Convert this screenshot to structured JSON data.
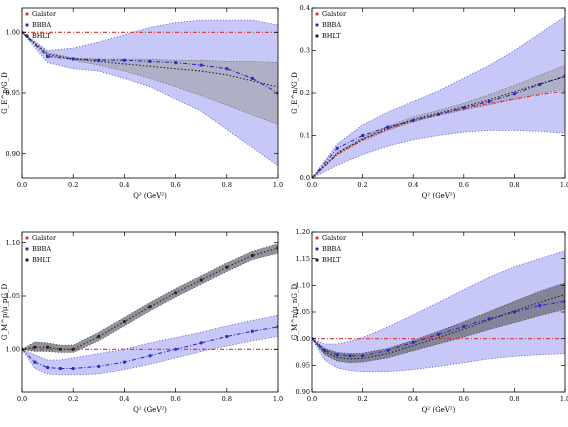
{
  "colors": {
    "band": "#c8c8f8",
    "band_edge": "#5a5ad0",
    "inner_band": "#9a9a9a",
    "dark_band": "#6e6e7a",
    "galster": "#e03030",
    "bbba": "#2a2ad0",
    "bhlt": "#222222"
  },
  "chart_data": [
    {
      "type": "line",
      "xlabel": "Q² (GeV²)",
      "ylabel": "G_E^p/G_D",
      "xlim": [
        0,
        1
      ],
      "ylim": [
        0.88,
        1.02
      ],
      "xticks": [
        0,
        0.2,
        0.4,
        0.6,
        0.8,
        1
      ],
      "xtick_labels": [
        "0.0",
        "0.2",
        "0.4",
        "0.6",
        "0.8",
        "1.0"
      ],
      "yticks": [
        0.9,
        0.95,
        1.0
      ],
      "ytick_labels": [
        "0.90",
        "0.95",
        "1.00"
      ],
      "legend": [
        "Galster",
        "BBBA",
        "BHLT"
      ],
      "legend_position": "top-left",
      "x": [
        0,
        0.1,
        0.2,
        0.3,
        0.4,
        0.5,
        0.6,
        0.7,
        0.8,
        0.9,
        1.0
      ],
      "series": [
        {
          "name": "Galster",
          "style": "dash-dot",
          "values": [
            1.0,
            1.0,
            1.0,
            1.0,
            1.0,
            1.0,
            1.0,
            1.0,
            1.0,
            1.0,
            1.0
          ]
        },
        {
          "name": "BBBA",
          "style": "dash-dot-marker",
          "values": [
            1.0,
            0.98,
            0.978,
            0.977,
            0.977,
            0.976,
            0.975,
            0.973,
            0.97,
            0.962,
            0.95
          ]
        },
        {
          "name": "BHLT",
          "style": "dotted",
          "values": [
            1.0,
            0.982,
            0.978,
            0.976,
            0.974,
            0.972,
            0.97,
            0.968,
            0.965,
            0.96,
            0.955
          ]
        }
      ],
      "bands": [
        {
          "role": "outer",
          "lower": [
            1.0,
            0.975,
            0.97,
            0.968,
            0.962,
            0.955,
            0.945,
            0.935,
            0.92,
            0.905,
            0.89
          ],
          "upper": [
            1.0,
            0.985,
            0.987,
            0.992,
            0.998,
            1.004,
            1.008,
            1.01,
            1.01,
            1.01,
            1.006
          ]
        },
        {
          "role": "inner",
          "lower": [
            1.0,
            0.981,
            0.977,
            0.973,
            0.968,
            0.962,
            0.955,
            0.948,
            0.94,
            0.932,
            0.924
          ],
          "upper": [
            1.0,
            0.983,
            0.979,
            0.978,
            0.978,
            0.978,
            0.977,
            0.977,
            0.976,
            0.976,
            0.975
          ]
        }
      ]
    },
    {
      "type": "line",
      "xlabel": "Q² (GeV²)",
      "ylabel": "G_E^n/G_D",
      "xlim": [
        0,
        1
      ],
      "ylim": [
        0,
        0.4
      ],
      "xticks": [
        0,
        0.2,
        0.4,
        0.6,
        0.8,
        1
      ],
      "xtick_labels": [
        "0.0",
        "0.2",
        "0.4",
        "0.6",
        "0.8",
        "1.0"
      ],
      "yticks": [
        0,
        0.1,
        0.2,
        0.3,
        0.4
      ],
      "ytick_labels": [
        "0.0",
        "0.1",
        "0.2",
        "0.3",
        "0.4"
      ],
      "legend": [
        "Galster",
        "BBBA",
        "BHLT"
      ],
      "legend_position": "top-left",
      "x": [
        0,
        0.1,
        0.2,
        0.3,
        0.4,
        0.5,
        0.6,
        0.7,
        0.8,
        0.9,
        1.0
      ],
      "series": [
        {
          "name": "Galster",
          "style": "dash-dot",
          "values": [
            0,
            0.055,
            0.09,
            0.115,
            0.135,
            0.15,
            0.163,
            0.175,
            0.186,
            0.196,
            0.205
          ]
        },
        {
          "name": "BBBA",
          "style": "dash-dot-marker",
          "values": [
            0,
            0.07,
            0.1,
            0.12,
            0.135,
            0.15,
            0.165,
            0.18,
            0.198,
            0.22,
            0.24
          ]
        },
        {
          "name": "BHLT",
          "style": "dotted",
          "values": [
            0,
            0.058,
            0.092,
            0.117,
            0.138,
            0.153,
            0.168,
            0.184,
            0.203,
            0.222,
            0.238
          ]
        }
      ],
      "bands": [
        {
          "role": "outer",
          "lower": [
            0,
            0.03,
            0.055,
            0.075,
            0.09,
            0.1,
            0.108,
            0.112,
            0.112,
            0.11,
            0.105
          ],
          "upper": [
            0,
            0.08,
            0.125,
            0.155,
            0.18,
            0.205,
            0.235,
            0.265,
            0.3,
            0.34,
            0.38
          ]
        },
        {
          "role": "inner",
          "lower": [
            0,
            0.055,
            0.088,
            0.112,
            0.132,
            0.147,
            0.16,
            0.172,
            0.185,
            0.198,
            0.21
          ],
          "upper": [
            0,
            0.061,
            0.096,
            0.122,
            0.144,
            0.159,
            0.176,
            0.196,
            0.218,
            0.242,
            0.265
          ]
        }
      ]
    },
    {
      "type": "line",
      "xlabel": "Q² (GeV²)",
      "ylabel": "G_M^p/μ_pG_D",
      "xlim": [
        0,
        1
      ],
      "ylim": [
        0.96,
        1.11
      ],
      "xticks": [
        0,
        0.2,
        0.4,
        0.6,
        0.8,
        1
      ],
      "xtick_labels": [
        "0.0",
        "0.2",
        "0.4",
        "0.6",
        "0.8",
        "1.0"
      ],
      "yticks": [
        1.0,
        1.05,
        1.1
      ],
      "ytick_labels": [
        "1.00",
        "1.05",
        "1.10"
      ],
      "legend": [
        "Galster",
        "BBBA",
        "BHLT"
      ],
      "legend_position": "top-left",
      "x": [
        0,
        0.05,
        0.1,
        0.15,
        0.2,
        0.3,
        0.4,
        0.5,
        0.6,
        0.7,
        0.8,
        0.9,
        1.0
      ],
      "series": [
        {
          "name": "Galster",
          "style": "dash-dot",
          "values": [
            1.0,
            1.0,
            1.0,
            1.0,
            1.0,
            1.0,
            1.0,
            1.0,
            1.0,
            1.0,
            1.0,
            1.0,
            1.0
          ]
        },
        {
          "name": "BBBA",
          "style": "dash-dot-marker",
          "values": [
            1.0,
            0.988,
            0.983,
            0.982,
            0.982,
            0.984,
            0.988,
            0.994,
            1.0,
            1.006,
            1.012,
            1.017,
            1.021
          ]
        },
        {
          "name": "BHLT",
          "style": "dotted-marker",
          "values": [
            1.0,
            1.002,
            1.002,
            1.0,
            1.0,
            1.012,
            1.026,
            1.04,
            1.053,
            1.065,
            1.077,
            1.088,
            1.095
          ]
        }
      ],
      "bands": [
        {
          "role": "outer",
          "lower": [
            1.0,
            0.982,
            0.977,
            0.976,
            0.976,
            0.977,
            0.981,
            0.986,
            0.992,
            0.998,
            1.003,
            1.008,
            1.012
          ],
          "upper": [
            1.0,
            0.995,
            0.99,
            0.99,
            0.992,
            0.996,
            1.0,
            1.006,
            1.011,
            1.016,
            1.022,
            1.027,
            1.032
          ]
        },
        {
          "role": "dark",
          "lower": [
            1.0,
            0.998,
            0.998,
            0.997,
            0.997,
            1.008,
            1.022,
            1.036,
            1.049,
            1.061,
            1.073,
            1.084,
            1.09
          ],
          "upper": [
            1.0,
            1.007,
            1.006,
            1.004,
            1.004,
            1.016,
            1.03,
            1.044,
            1.057,
            1.069,
            1.081,
            1.092,
            1.099
          ]
        }
      ]
    },
    {
      "type": "line",
      "xlabel": "Q² (GeV²)",
      "ylabel": "G_M^n/μ_nG_D",
      "xlim": [
        0,
        1
      ],
      "ylim": [
        0.9,
        1.2
      ],
      "xticks": [
        0,
        0.2,
        0.4,
        0.6,
        0.8,
        1
      ],
      "xtick_labels": [
        "0.0",
        "0.2",
        "0.4",
        "0.6",
        "0.8",
        "1.0"
      ],
      "yticks": [
        0.9,
        0.95,
        1.0,
        1.05,
        1.1,
        1.15,
        1.2
      ],
      "ytick_labels": [
        "0.90",
        "0.95",
        "1.00",
        "1.05",
        "1.10",
        "1.15",
        "1.20"
      ],
      "legend": [
        "Galster",
        "BBBA",
        "BHLT"
      ],
      "legend_position": "top-left",
      "x": [
        0,
        0.05,
        0.1,
        0.15,
        0.2,
        0.3,
        0.4,
        0.5,
        0.6,
        0.7,
        0.8,
        0.9,
        1.0
      ],
      "series": [
        {
          "name": "Galster",
          "style": "dash-dot",
          "values": [
            1.0,
            1.0,
            1.0,
            1.0,
            1.0,
            1.0,
            1.0,
            1.0,
            1.0,
            1.0,
            1.0,
            1.0,
            1.0
          ]
        },
        {
          "name": "BBBA",
          "style": "dash-dot-marker",
          "values": [
            1.0,
            0.978,
            0.97,
            0.968,
            0.968,
            0.978,
            0.993,
            1.008,
            1.023,
            1.037,
            1.05,
            1.062,
            1.07
          ]
        },
        {
          "name": "BHLT",
          "style": "dotted",
          "values": [
            1.0,
            0.975,
            0.965,
            0.962,
            0.963,
            0.972,
            0.987,
            1.002,
            1.018,
            1.035,
            1.052,
            1.068,
            1.083
          ]
        }
      ],
      "bands": [
        {
          "role": "outer",
          "lower": [
            1.0,
            0.96,
            0.945,
            0.94,
            0.938,
            0.938,
            0.942,
            0.948,
            0.955,
            0.962,
            0.967,
            0.97,
            0.972
          ],
          "upper": [
            1.0,
            0.99,
            0.99,
            0.995,
            1.002,
            1.022,
            1.045,
            1.068,
            1.092,
            1.115,
            1.135,
            1.15,
            1.165
          ]
        },
        {
          "role": "dark",
          "lower": [
            1.0,
            0.97,
            0.958,
            0.955,
            0.956,
            0.964,
            0.977,
            0.99,
            1.003,
            1.017,
            1.03,
            1.043,
            1.055
          ],
          "upper": [
            1.0,
            0.982,
            0.974,
            0.972,
            0.973,
            0.982,
            0.997,
            1.014,
            1.032,
            1.051,
            1.07,
            1.089,
            1.105
          ]
        }
      ]
    }
  ]
}
